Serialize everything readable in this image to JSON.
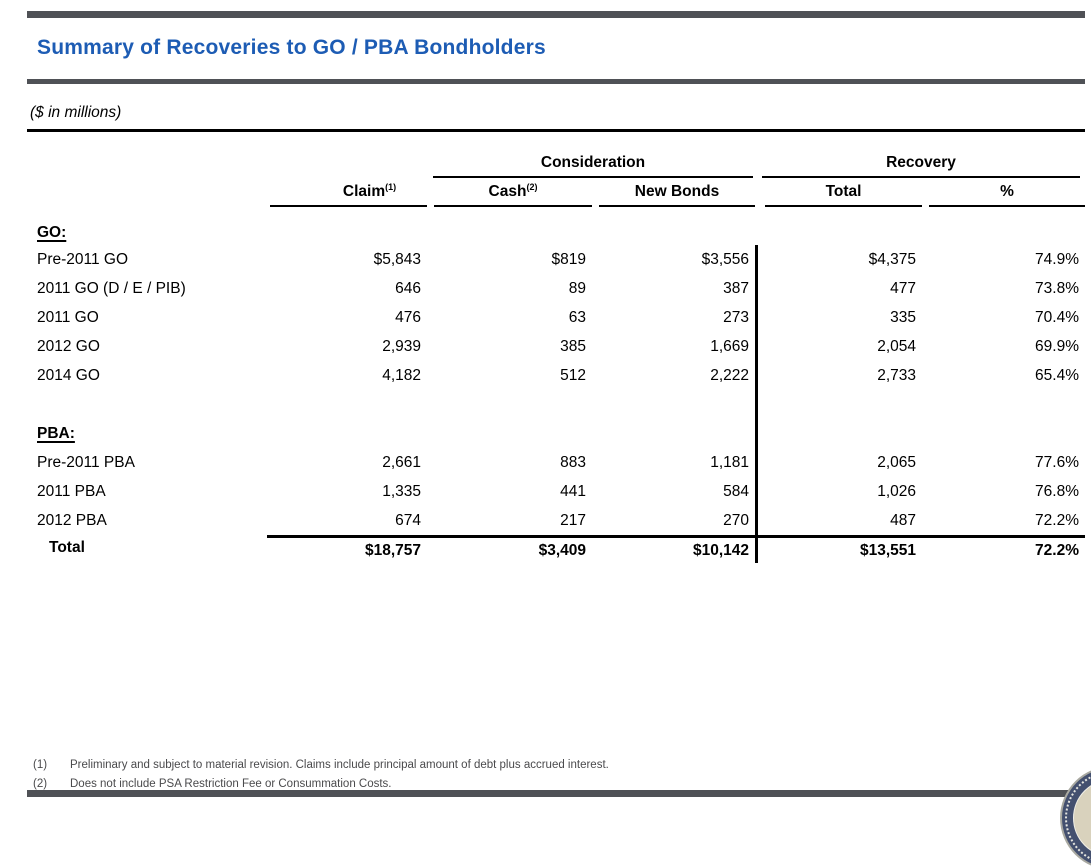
{
  "page": {
    "title": "Summary of Recoveries to GO / PBA Bondholders",
    "units_note": "($ in millions)",
    "accent_color": "#1d5cb4",
    "bar_color": "#4f5156"
  },
  "icons": {
    "seal": "government-seal-partial"
  },
  "table": {
    "group_headers": {
      "consideration": "Consideration",
      "recovery": "Recovery"
    },
    "columns": {
      "claim": "Claim",
      "claim_sup": "(1)",
      "cash": "Cash",
      "cash_sup": "(2)",
      "new_bonds": "New Bonds",
      "total": "Total",
      "pct": "%"
    },
    "sections": [
      {
        "label": "GO:",
        "rows": [
          {
            "label": "Pre-2011 GO",
            "claim": "$5,843",
            "cash": "$819",
            "new_bonds": "$3,556",
            "total": "$4,375",
            "pct": "74.9%"
          },
          {
            "label": "2011 GO (D / E / PIB)",
            "claim": "646",
            "cash": "89",
            "new_bonds": "387",
            "total": "477",
            "pct": "73.8%"
          },
          {
            "label": "2011 GO",
            "claim": "476",
            "cash": "63",
            "new_bonds": "273",
            "total": "335",
            "pct": "70.4%"
          },
          {
            "label": "2012 GO",
            "claim": "2,939",
            "cash": "385",
            "new_bonds": "1,669",
            "total": "2,054",
            "pct": "69.9%"
          },
          {
            "label": "2014 GO",
            "claim": "4,182",
            "cash": "512",
            "new_bonds": "2,222",
            "total": "2,733",
            "pct": "65.4%"
          }
        ]
      },
      {
        "label": "PBA:",
        "rows": [
          {
            "label": "Pre-2011 PBA",
            "claim": "2,661",
            "cash": "883",
            "new_bonds": "1,181",
            "total": "2,065",
            "pct": "77.6%"
          },
          {
            "label": "2011 PBA",
            "claim": "1,335",
            "cash": "441",
            "new_bonds": "584",
            "total": "1,026",
            "pct": "76.8%"
          },
          {
            "label": "2012 PBA",
            "claim": "674",
            "cash": "217",
            "new_bonds": "270",
            "total": "487",
            "pct": "72.2%"
          }
        ]
      }
    ],
    "total_row": {
      "label": "Total",
      "claim": "$18,757",
      "cash": "$3,409",
      "new_bonds": "$10,142",
      "total": "$13,551",
      "pct": "72.2%"
    }
  },
  "footnotes": [
    {
      "marker": "(1)",
      "text": "Preliminary and subject to material revision. Claims include principal amount of debt plus accrued interest."
    },
    {
      "marker": "(2)",
      "text": "Does not include PSA Restriction Fee or Consummation Costs."
    }
  ]
}
